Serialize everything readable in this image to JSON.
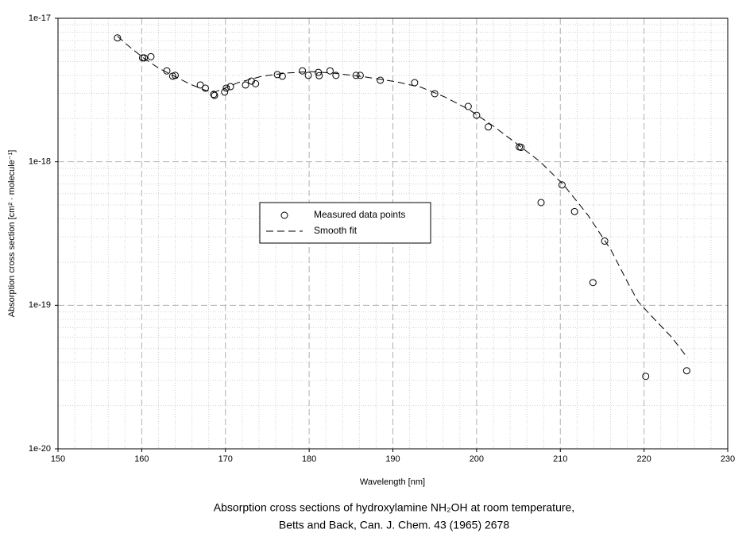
{
  "chart_data": {
    "type": "scatter",
    "xlabel": "Wavelength [nm]",
    "ylabel": "Absorption cross section [cm² · molecule⁻¹]",
    "caption": [
      "Absorption cross sections of hydroxylamine NH₂OH at room temperature,",
      "Betts and Back,  Can. J. Chem. 43 (1965) 2678"
    ],
    "xlim": [
      150,
      230
    ],
    "xticks": [
      150,
      160,
      170,
      180,
      190,
      200,
      210,
      220,
      230
    ],
    "x_minor_ticks": [
      152,
      154,
      156,
      158,
      162,
      164,
      166,
      168,
      172,
      174,
      176,
      178,
      182,
      184,
      186,
      188,
      192,
      194,
      196,
      198,
      202,
      204,
      206,
      208,
      212,
      214,
      216,
      218,
      222,
      224,
      226,
      228
    ],
    "ylim": [
      1e-20,
      1e-17
    ],
    "yticks": [
      1e-20,
      1e-19,
      1e-18,
      1e-17
    ],
    "y_minor_ticks": [
      2e-20,
      3e-20,
      4e-20,
      5e-20,
      6e-20,
      7e-20,
      8e-20,
      9e-20,
      2e-19,
      3e-19,
      4e-19,
      5e-19,
      6e-19,
      7e-19,
      8e-19,
      9e-19,
      2e-18,
      3e-18,
      4e-18,
      5e-18,
      6e-18,
      7e-18,
      8e-18,
      9e-18
    ],
    "log_y": true,
    "grid": true,
    "legend": "center",
    "series": [
      {
        "name": "Measured data points",
        "color": "#000000",
        "marker": "circle",
        "x": [
          157.1,
          160.1,
          160.3,
          161.1,
          163.0,
          163.7,
          164.0,
          167.0,
          167.6,
          168.6,
          168.7,
          169.9,
          170.1,
          170.6,
          172.4,
          173.1,
          173.6,
          176.2,
          176.8,
          179.2,
          179.9,
          181.1,
          181.2,
          182.5,
          183.2,
          185.6,
          186.1,
          188.5,
          192.6,
          195.0,
          199.0,
          200.0,
          201.4,
          205.1,
          205.3,
          207.7,
          210.2,
          211.7,
          213.9,
          215.3,
          220.2,
          225.1
        ],
        "values": [
          7.3e-18,
          5.3e-18,
          5.3e-18,
          5.4e-18,
          4.3e-18,
          3.95e-18,
          4e-18,
          3.43e-18,
          3.26e-18,
          2.95e-18,
          2.9e-18,
          3.06e-18,
          3.26e-18,
          3.34e-18,
          3.43e-18,
          3.65e-18,
          3.5e-18,
          4.05e-18,
          3.95e-18,
          4.3e-18,
          4e-18,
          4.2e-18,
          3.98e-18,
          4.3e-18,
          4e-18,
          4e-18,
          4e-18,
          3.7e-18,
          3.56e-18,
          2.98e-18,
          2.43e-18,
          2.11e-18,
          1.75e-18,
          1.27e-18,
          1.26e-18,
          5.2e-19,
          6.9e-19,
          4.5e-19,
          1.44e-19,
          2.8e-19,
          3.2e-20,
          3.5e-20
        ]
      },
      {
        "name": "Smooth fit",
        "color": "#000000",
        "line": "dashed",
        "x": [
          157.1,
          158.3,
          160.2,
          162.0,
          163.9,
          165.8,
          167.7,
          168.7,
          169.6,
          171.5,
          174.4,
          177.2,
          180.1,
          182.9,
          186.7,
          190.5,
          193.4,
          196.2,
          199.1,
          201.9,
          204.7,
          207.6,
          210.4,
          213.3,
          216.1,
          218.0,
          219.3,
          220.9,
          223.3,
          225.2
        ],
        "values": [
          7.5e-18,
          6.5e-18,
          5.3e-18,
          4.5e-18,
          3.95e-18,
          3.47e-18,
          3.13e-18,
          3.06e-18,
          3.2e-18,
          3.56e-18,
          3.95e-18,
          4.15e-18,
          4.25e-18,
          4.15e-18,
          3.9e-18,
          3.6e-18,
          3.3e-18,
          2.83e-18,
          2.31e-18,
          1.79e-18,
          1.35e-18,
          1e-18,
          6.9e-19,
          4.25e-19,
          2.4e-19,
          1.46e-19,
          1.06e-19,
          8.4e-20,
          6e-20,
          4.3e-20
        ]
      }
    ]
  }
}
